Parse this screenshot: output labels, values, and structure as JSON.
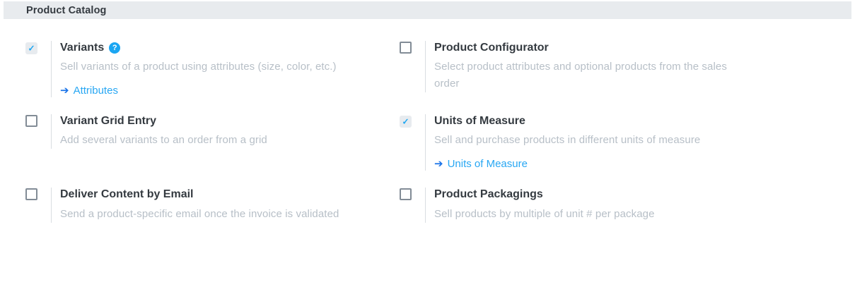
{
  "header": {
    "title": "Product Catalog"
  },
  "colors": {
    "header_bg": "#e8ebee",
    "title_text": "#343a40",
    "desc_text": "#b7bfc7",
    "accent_blue": "#1ba6f2",
    "link_blue": "#28a7f3",
    "arrow_blue": "#1a73e8",
    "checkbox_bg": "#e7ebef",
    "checkbox_border": "#828c96",
    "divider": "#d9dde1"
  },
  "icons": {
    "check": "✓",
    "help": "?",
    "arrow": "➔"
  },
  "settings": [
    {
      "label": "Variants",
      "checked": true,
      "description": "Sell variants of a product using attributes (size, color, etc.)",
      "link": "Attributes"
    },
    {
      "label": "Product Configurator",
      "checked": false,
      "description": "Select product attributes and optional products from the sales order"
    },
    {
      "label": "Variant Grid Entry",
      "checked": false,
      "description": "Add several variants to an order from a grid"
    },
    {
      "label": "Units of Measure",
      "checked": true,
      "description": "Sell and purchase products in different units of measure",
      "link": "Units of Measure"
    },
    {
      "label": "Deliver Content by Email",
      "checked": false,
      "description": "Send a product-specific email once the invoice is validated"
    },
    {
      "label": "Product Packagings",
      "checked": false,
      "description": "Sell products by multiple of unit # per package"
    }
  ]
}
